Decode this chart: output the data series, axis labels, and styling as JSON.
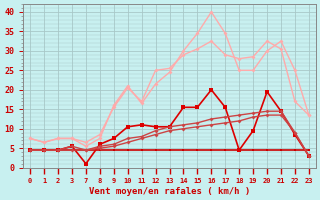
{
  "title": "",
  "xlabel": "Vent moyen/en rafales ( km/h )",
  "bg_color": "#c8f0f0",
  "grid_color": "#a8c8c8",
  "x_tick_labels": [
    "0",
    "1",
    "2",
    "3",
    "7",
    "8",
    "9",
    "10",
    "11",
    "12",
    "13",
    "14",
    "15",
    "16",
    "17",
    "18",
    "19",
    "20",
    "21",
    "22",
    "23"
  ],
  "ylim": [
    0,
    42
  ],
  "yticks": [
    0,
    5,
    10,
    15,
    20,
    25,
    30,
    35,
    40
  ],
  "lines": [
    {
      "x": [
        0,
        1,
        2,
        3,
        4,
        5,
        6,
        7,
        8,
        9,
        10,
        11,
        12,
        13,
        14,
        15,
        16,
        17,
        18,
        19,
        20
      ],
      "y": [
        4.5,
        4.5,
        4.5,
        4.5,
        4.5,
        4.5,
        4.5,
        4.5,
        4.5,
        4.5,
        4.5,
        4.5,
        4.5,
        4.5,
        4.5,
        4.5,
        4.5,
        4.5,
        4.5,
        4.5,
        4.5
      ],
      "color": "#cc0000",
      "lw": 1.2,
      "marker": "s",
      "ms": 2.0
    },
    {
      "x": [
        0,
        1,
        2,
        3,
        4,
        5,
        6,
        7,
        8,
        9,
        10,
        11,
        12,
        13,
        14,
        15,
        16,
        17,
        18,
        19,
        20
      ],
      "y": [
        4.5,
        4.5,
        4.5,
        5.5,
        1.0,
        6.0,
        7.5,
        10.5,
        11.0,
        10.5,
        10.5,
        15.5,
        15.5,
        20.0,
        15.5,
        4.5,
        9.5,
        19.5,
        14.5,
        8.5,
        3.0
      ],
      "color": "#dd0000",
      "lw": 1.2,
      "marker": "s",
      "ms": 2.5
    },
    {
      "x": [
        0,
        1,
        2,
        3,
        4,
        5,
        6,
        7,
        8,
        9,
        10,
        11,
        12,
        13,
        14,
        15,
        16,
        17,
        18,
        19,
        20
      ],
      "y": [
        7.5,
        6.5,
        7.5,
        7.5,
        5.5,
        7.5,
        16.0,
        21.0,
        16.5,
        21.5,
        24.5,
        30.0,
        34.5,
        40.0,
        34.5,
        25.0,
        25.0,
        30.0,
        32.5,
        25.0,
        13.5
      ],
      "color": "#ffaaaa",
      "lw": 1.0,
      "marker": "D",
      "ms": 2.0
    },
    {
      "x": [
        0,
        1,
        2,
        3,
        4,
        5,
        6,
        7,
        8,
        9,
        10,
        11,
        12,
        13,
        14,
        15,
        16,
        17,
        18,
        19,
        20
      ],
      "y": [
        7.5,
        6.5,
        7.5,
        7.5,
        6.5,
        8.5,
        15.5,
        20.5,
        17.0,
        25.0,
        25.5,
        29.0,
        30.5,
        32.5,
        29.0,
        28.0,
        28.5,
        32.5,
        30.5,
        17.0,
        13.5
      ],
      "color": "#ffaaaa",
      "lw": 1.0,
      "marker": "D",
      "ms": 2.0
    },
    {
      "x": [
        0,
        1,
        2,
        3,
        4,
        5,
        6,
        7,
        8,
        9,
        10,
        11,
        12,
        13,
        14,
        15,
        16,
        17,
        18,
        19,
        20
      ],
      "y": [
        4.5,
        4.5,
        4.5,
        5.5,
        4.5,
        5.5,
        6.0,
        7.5,
        8.0,
        9.5,
        10.5,
        11.0,
        11.5,
        12.5,
        13.0,
        13.5,
        14.0,
        14.5,
        14.5,
        9.0,
        3.0
      ],
      "color": "#cc4444",
      "lw": 1.0,
      "marker": "D",
      "ms": 2.0
    },
    {
      "x": [
        0,
        1,
        2,
        3,
        4,
        5,
        6,
        7,
        8,
        9,
        10,
        11,
        12,
        13,
        14,
        15,
        16,
        17,
        18,
        19,
        20
      ],
      "y": [
        4.5,
        4.5,
        4.5,
        4.5,
        4.5,
        5.0,
        5.5,
        6.5,
        7.5,
        8.5,
        9.5,
        10.0,
        10.5,
        11.0,
        11.5,
        12.0,
        13.0,
        13.5,
        13.5,
        9.0,
        3.0
      ],
      "color": "#cc4444",
      "lw": 1.0,
      "marker": "D",
      "ms": 2.0
    }
  ],
  "x_gap_positions": [
    0,
    1,
    2,
    3,
    7,
    8,
    9,
    10,
    11,
    12,
    13,
    14,
    15,
    16,
    17,
    18,
    19,
    20,
    21,
    22,
    23
  ]
}
